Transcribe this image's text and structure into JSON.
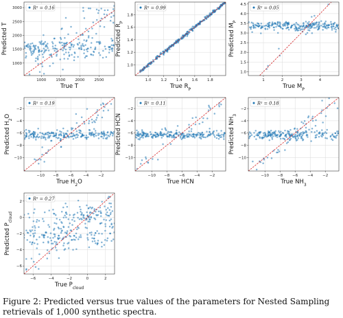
{
  "caption": "Figure 2: Predicted versus true values of the parameters for Nested Sampling retrievals of 1,000 synthetic spectra.",
  "colors": {
    "point": "#1f77b4",
    "identity_line": "#d62728",
    "grid": "#d9d9d9"
  },
  "chart_data": [
    {
      "type": "scatter",
      "id": "T",
      "legend": "R² = 0.16",
      "xlabel": "True T",
      "ylabel": "Predicted T",
      "xlim": [
        550,
        2900
      ],
      "ylim": [
        550,
        3200
      ],
      "xticks": [
        1000,
        1500,
        2000,
        2500
      ],
      "yticks": [
        1000,
        1500,
        2000,
        2500,
        3000
      ],
      "xticklabels": [
        "1000",
        "1500",
        "2000",
        "2500"
      ],
      "yticklabels": [
        "1000",
        "1500",
        "2000",
        "2500",
        "3000"
      ],
      "grid": true,
      "legend_position": "top-left",
      "identity_line": [
        [
          550,
          550
        ],
        [
          2900,
          2900
        ]
      ],
      "point_model": {
        "n": 260,
        "base_level": 1500,
        "base_spread": 180,
        "trend_fraction": 0.45,
        "trend_spread": 450
      }
    },
    {
      "type": "scatter",
      "id": "Rp",
      "legend": "R² = 0.99",
      "xlabel": "True R_P",
      "ylabel": "Predicted R_P",
      "xlim": [
        0.83,
        2.0
      ],
      "ylim": [
        0.83,
        2.0
      ],
      "xticks": [
        1.0,
        1.2,
        1.4,
        1.6,
        1.8
      ],
      "yticks": [
        1.0,
        1.2,
        1.4,
        1.6,
        1.8
      ],
      "xticklabels": [
        "1.0",
        "1.2",
        "1.4",
        "1.6",
        "1.8"
      ],
      "yticklabels": [
        "1.0",
        "1.2",
        "1.4",
        "1.6",
        "1.8"
      ],
      "grid": true,
      "legend_position": "top-left",
      "identity_line": [
        [
          0.83,
          0.83
        ],
        [
          2.0,
          2.0
        ]
      ],
      "point_model": {
        "n": 300,
        "tight": true,
        "spread": 0.015
      }
    },
    {
      "type": "scatter",
      "id": "Mp",
      "legend": "R² = 0.05",
      "xlabel": "True M_P",
      "ylabel": "Predicted M_P",
      "xlim": [
        0.2,
        5.0
      ],
      "ylim": [
        0.8,
        4.6
      ],
      "xticks": [
        1,
        2,
        3,
        4
      ],
      "yticks": [
        1.0,
        1.5,
        2.0,
        2.5,
        3.0,
        3.5,
        4.0,
        4.5
      ],
      "xticklabels": [
        "1",
        "2",
        "3",
        "4"
      ],
      "yticklabels": [
        "1.0",
        "1.5",
        "2.0",
        "2.5",
        "3.0",
        "3.5",
        "4.0",
        "4.5"
      ],
      "grid": true,
      "legend_position": "top-left",
      "identity_line": [
        [
          0.8,
          0.8
        ],
        [
          4.6,
          4.6
        ]
      ],
      "point_model": {
        "n": 260,
        "base_level": 3.35,
        "base_spread": 0.12,
        "trend_fraction": 0.15,
        "trend_spread": 0.25
      }
    },
    {
      "type": "scatter",
      "id": "H2O",
      "legend": "R² = 0.19",
      "xlabel": "True H_2O",
      "ylabel": "Predicted H_2O",
      "xlim": [
        -12.2,
        -0.2
      ],
      "ylim": [
        -12.2,
        -0.2
      ],
      "xticks": [
        -10,
        -8,
        -6,
        -4,
        -2
      ],
      "yticks": [
        -10,
        -8,
        -6,
        -4,
        -2
      ],
      "xticklabels": [
        "−10",
        "−8",
        "−6",
        "−4",
        "−2"
      ],
      "yticklabels": [
        "−10",
        "−8",
        "−6",
        "−4",
        "−2"
      ],
      "grid": true,
      "legend_position": "top-left",
      "identity_line": [
        [
          -12.2,
          -12.2
        ],
        [
          -0.2,
          -0.2
        ]
      ],
      "point_model": {
        "n": 260,
        "base_level": -6.3,
        "base_spread": 0.4,
        "trend_fraction": 0.3,
        "trend_spread": 0.8
      }
    },
    {
      "type": "scatter",
      "id": "HCN",
      "legend": "R² = 0.11",
      "xlabel": "True HCN",
      "ylabel": "Predicted HCN",
      "xlim": [
        -12.2,
        -0.2
      ],
      "ylim": [
        -12.2,
        -0.2
      ],
      "xticks": [
        -10,
        -8,
        -6,
        -4,
        -2
      ],
      "yticks": [
        -10,
        -8,
        -6,
        -4,
        -2
      ],
      "xticklabels": [
        "−10",
        "−8",
        "−6",
        "−4",
        "−2"
      ],
      "yticklabels": [
        "−10",
        "−8",
        "−6",
        "−4",
        "−2"
      ],
      "grid": true,
      "legend_position": "top-left",
      "identity_line": [
        [
          -12.2,
          -12.2
        ],
        [
          -0.2,
          -0.2
        ]
      ],
      "point_model": {
        "n": 260,
        "base_level": -6.3,
        "base_spread": 0.35,
        "trend_fraction": 0.2,
        "trend_spread": 0.8
      }
    },
    {
      "type": "scatter",
      "id": "NH3",
      "legend": "R² = 0.18",
      "xlabel": "True NH_3",
      "ylabel": "Predicted NH_3",
      "xlim": [
        -12.2,
        -0.2
      ],
      "ylim": [
        -12.2,
        -0.2
      ],
      "xticks": [
        -10,
        -8,
        -6,
        -4,
        -2
      ],
      "yticks": [
        -10,
        -8,
        -6,
        -4,
        -2
      ],
      "xticklabels": [
        "−10",
        "−8",
        "−6",
        "−4",
        "−2"
      ],
      "yticklabels": [
        "−10",
        "−8",
        "−6",
        "−4",
        "−2"
      ],
      "grid": true,
      "legend_position": "top-left",
      "identity_line": [
        [
          -12.2,
          -12.2
        ],
        [
          -0.2,
          -0.2
        ]
      ],
      "point_model": {
        "n": 260,
        "base_level": -6.3,
        "base_spread": 0.4,
        "trend_fraction": 0.3,
        "trend_spread": 0.8
      }
    },
    {
      "type": "scatter",
      "id": "Pcloud",
      "legend": "R² = 0.27",
      "xlabel": "True P_cloud",
      "ylabel": "Predicted P_cloud",
      "xlim": [
        -7.0,
        3.0
      ],
      "ylim": [
        -7.0,
        3.0
      ],
      "xticks": [
        -6,
        -4,
        -2,
        0,
        2
      ],
      "yticks": [
        -6,
        -4,
        -2,
        0,
        2
      ],
      "xticklabels": [
        "−6",
        "−4",
        "−2",
        "0",
        "2"
      ],
      "yticklabels": [
        "−6",
        "−4",
        "−2",
        "0",
        "2"
      ],
      "grid": true,
      "legend_position": "top-left",
      "identity_line": [
        [
          -7.0,
          -7.0
        ],
        [
          3.0,
          3.0
        ]
      ],
      "point_model": {
        "n": 300,
        "bimodal": true,
        "level_low": -2.3,
        "level_high": 0.3,
        "spread": 0.7
      }
    }
  ]
}
